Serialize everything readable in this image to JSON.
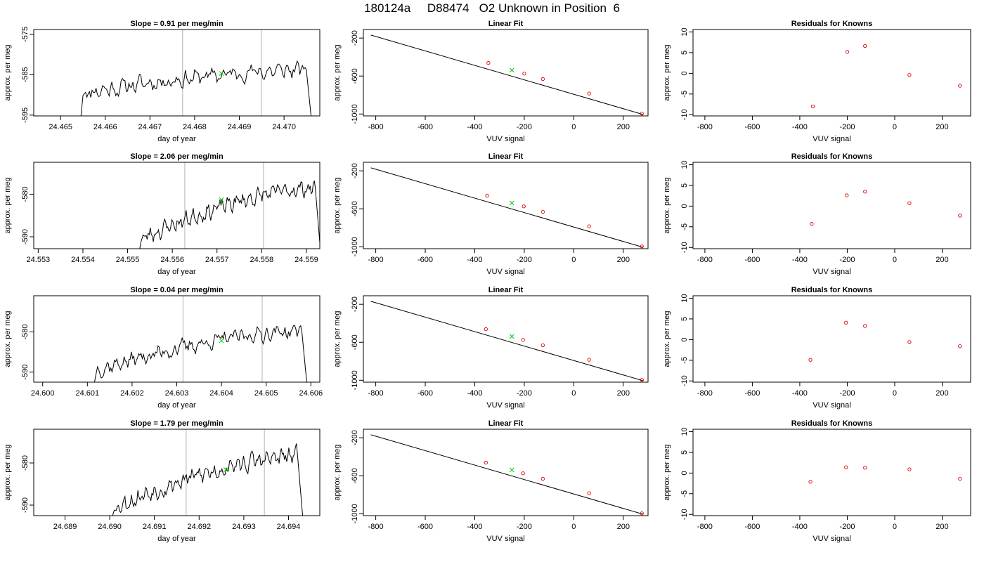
{
  "figure": {
    "title": "180124a     D88474   O2 Unknown in Position  6"
  },
  "chart_data": [
    {
      "type": "line",
      "title": "Slope =  0.91  per meg/min",
      "xlabel": "day of year",
      "ylabel": "approx. per meg",
      "xlim": [
        24.4644,
        24.4708
      ],
      "ylim": [
        -595.2,
        -573.8
      ],
      "xticks": [
        24.465,
        24.466,
        24.467,
        24.468,
        24.469,
        24.47
      ],
      "xtick_labels": [
        "24.465",
        "24.466",
        "24.467",
        "24.468",
        "24.469",
        "24.470"
      ],
      "yticks": [
        -575,
        -585,
        -595
      ],
      "ytick_labels": [
        "-575",
        "-585",
        "-595"
      ],
      "vlines": [
        24.46773,
        24.46949
      ],
      "marker": {
        "x": 24.4686,
        "y": -584.7,
        "color": "#00cc00"
      },
      "series": [
        {
          "x_start": 24.4655,
          "x_end": 24.4705,
          "level_start": -589.5,
          "level_end": -583.8,
          "noise": 2.6,
          "seed": 11,
          "drop_start": -596,
          "drop_end": -597,
          "line_color": "#000000"
        }
      ]
    },
    {
      "type": "line",
      "title": "Linear Fit",
      "xlabel": "VUV signal",
      "ylabel": "approx. per meg",
      "xlim": [
        -850,
        300
      ],
      "ylim": [
        -1020,
        -110
      ],
      "xticks": [
        -800,
        -600,
        -400,
        -200,
        0,
        200
      ],
      "xtick_labels": [
        "-800",
        "-600",
        "-400",
        "-200",
        "0",
        "200"
      ],
      "yticks": [
        -200,
        -600,
        -1000
      ],
      "ytick_labels": [
        "-200",
        "-600",
        "-1000"
      ],
      "fit_line": {
        "x": [
          -820,
          280
        ],
        "y": [
          -168,
          -1005
        ]
      },
      "knowns": {
        "x": [
          -345,
          -200,
          -125,
          62,
          275
        ],
        "y": [
          -462,
          -574,
          -632,
          -784,
          -996
        ]
      },
      "unknown": {
        "x": [
          -250
        ],
        "y": [
          -538
        ]
      }
    },
    {
      "type": "scatter",
      "title": "Residuals for Knowns",
      "xlabel": "VUV signal",
      "ylabel": "approx. per meg",
      "xlim": [
        -850,
        320
      ],
      "ylim": [
        -10.3,
        10.6
      ],
      "xticks": [
        -800,
        -600,
        -400,
        -200,
        0,
        200
      ],
      "xtick_labels": [
        "-800",
        "-600",
        "-400",
        "-200",
        "0",
        "200"
      ],
      "yticks": [
        10,
        5,
        0,
        -5,
        -10
      ],
      "ytick_labels": [
        "10",
        "5",
        "0",
        "-5",
        "-10"
      ],
      "x": [
        -345,
        -200,
        -125,
        62,
        275
      ],
      "y": [
        -8.0,
        5.2,
        6.6,
        -0.4,
        -3.0
      ]
    },
    {
      "type": "line",
      "title": "Slope =  2.06  per meg/min",
      "xlabel": "day of year",
      "ylabel": "approx. per meg",
      "xlim": [
        24.5529,
        24.5593
      ],
      "ylim": [
        -592.8,
        -572.5
      ],
      "xticks": [
        24.553,
        24.554,
        24.555,
        24.556,
        24.557,
        24.558,
        24.559
      ],
      "xtick_labels": [
        "24.553",
        "24.554",
        "24.555",
        "24.556",
        "24.557",
        "24.558",
        "24.559"
      ],
      "yticks": [
        -580,
        -590
      ],
      "ytick_labels": [
        "-580",
        "-590"
      ],
      "vlines": [
        24.55628,
        24.55804
      ],
      "marker": {
        "x": 24.5571,
        "y": -581.3,
        "color": "#00cc00"
      },
      "series": [
        {
          "x_start": 24.5553,
          "x_end": 24.5592,
          "level_start": -590.5,
          "level_end": -578.5,
          "noise": 2.4,
          "seed": 23,
          "drop_start": -594,
          "drop_end": -594,
          "line_color": "#000000"
        }
      ]
    },
    {
      "type": "line",
      "title": "Linear Fit",
      "xlabel": "VUV signal",
      "ylabel": "approx. per meg",
      "xlim": [
        -850,
        300
      ],
      "ylim": [
        -1020,
        -110
      ],
      "xticks": [
        -800,
        -600,
        -400,
        -200,
        0,
        200
      ],
      "xtick_labels": [
        "-800",
        "-600",
        "-400",
        "-200",
        "0",
        "200"
      ],
      "yticks": [
        -200,
        -600,
        -1000
      ],
      "ytick_labels": [
        "-200",
        "-600",
        "-1000"
      ],
      "fit_line": {
        "x": [
          -820,
          280
        ],
        "y": [
          -168,
          -1005
        ]
      },
      "knowns": {
        "x": [
          -350,
          -202,
          -125,
          62,
          275
        ],
        "y": [
          -462,
          -574,
          -632,
          -784,
          -996
        ]
      },
      "unknown": {
        "x": [
          -250
        ],
        "y": [
          -538
        ]
      }
    },
    {
      "type": "scatter",
      "title": "Residuals for Knowns",
      "xlabel": "VUV signal",
      "ylabel": "approx. per meg",
      "xlim": [
        -850,
        320
      ],
      "ylim": [
        -10.3,
        10.6
      ],
      "xticks": [
        -800,
        -600,
        -400,
        -200,
        0,
        200
      ],
      "xtick_labels": [
        "-800",
        "-600",
        "-400",
        "-200",
        "0",
        "200"
      ],
      "yticks": [
        10,
        5,
        0,
        -5,
        -10
      ],
      "ytick_labels": [
        "10",
        "5",
        "0",
        "-5",
        "-10"
      ],
      "x": [
        -350,
        -202,
        -125,
        62,
        275
      ],
      "y": [
        -4.3,
        2.6,
        3.5,
        0.7,
        -2.3
      ]
    },
    {
      "type": "line",
      "title": "Slope =  0.04  per meg/min",
      "xlabel": "day of year",
      "ylabel": "approx. per meg",
      "xlim": [
        24.5998,
        24.6062
      ],
      "ylim": [
        -592.5,
        -571.0
      ],
      "xticks": [
        24.6,
        24.601,
        24.602,
        24.603,
        24.604,
        24.605,
        24.606
      ],
      "xtick_labels": [
        "24.600",
        "24.601",
        "24.602",
        "24.603",
        "24.604",
        "24.605",
        "24.606"
      ],
      "yticks": [
        -580,
        -590
      ],
      "ytick_labels": [
        "-580",
        "-590"
      ],
      "vlines": [
        24.60314,
        24.60491
      ],
      "marker": {
        "x": 24.604,
        "y": -582.2,
        "color": "#00cc00"
      },
      "series": [
        {
          "x_start": 24.6012,
          "x_end": 24.6058,
          "level_start": -589.5,
          "level_end": -579.8,
          "noise": 2.4,
          "seed": 37,
          "drop_start": -593,
          "drop_end": -594,
          "line_color": "#000000"
        }
      ]
    },
    {
      "type": "line",
      "title": "Linear Fit",
      "xlabel": "VUV signal",
      "ylabel": "approx. per meg",
      "xlim": [
        -850,
        300
      ],
      "ylim": [
        -1020,
        -110
      ],
      "xticks": [
        -800,
        -600,
        -400,
        -200,
        0,
        200
      ],
      "xtick_labels": [
        "-800",
        "-600",
        "-400",
        "-200",
        "0",
        "200"
      ],
      "yticks": [
        -200,
        -600,
        -1000
      ],
      "ytick_labels": [
        "-200",
        "-600",
        "-1000"
      ],
      "fit_line": {
        "x": [
          -820,
          280
        ],
        "y": [
          -168,
          -1005
        ]
      },
      "knowns": {
        "x": [
          -355,
          -205,
          -125,
          62,
          275
        ],
        "y": [
          -462,
          -574,
          -632,
          -784,
          -996
        ]
      },
      "unknown": {
        "x": [
          -250
        ],
        "y": [
          -538
        ]
      }
    },
    {
      "type": "scatter",
      "title": "Residuals for Knowns",
      "xlabel": "VUV signal",
      "ylabel": "approx. per meg",
      "xlim": [
        -850,
        320
      ],
      "ylim": [
        -10.3,
        10.6
      ],
      "xticks": [
        -800,
        -600,
        -400,
        -200,
        0,
        200
      ],
      "xtick_labels": [
        "-800",
        "-600",
        "-400",
        "-200",
        "0",
        "200"
      ],
      "yticks": [
        10,
        5,
        0,
        -5,
        -10
      ],
      "ytick_labels": [
        "10",
        "5",
        "0",
        "-5",
        "-10"
      ],
      "x": [
        -355,
        -205,
        -125,
        62,
        275
      ],
      "y": [
        -4.9,
        4.1,
        3.3,
        -0.6,
        -1.6
      ]
    },
    {
      "type": "line",
      "title": "Slope =  1.79  per meg/min",
      "xlabel": "day of year",
      "ylabel": "approx. per meg",
      "xlim": [
        24.6883,
        24.6947
      ],
      "ylim": [
        -592.5,
        -572.0
      ],
      "xticks": [
        24.689,
        24.69,
        24.691,
        24.692,
        24.693,
        24.694
      ],
      "xtick_labels": [
        "24.689",
        "24.690",
        "24.691",
        "24.692",
        "24.693",
        "24.694"
      ],
      "yticks": [
        -580,
        -590
      ],
      "ytick_labels": [
        "-580",
        "-590"
      ],
      "vlines": [
        24.69171,
        24.69346
      ],
      "marker": {
        "x": 24.6926,
        "y": -581.6,
        "color": "#00cc00"
      },
      "series": [
        {
          "x_start": 24.6901,
          "x_end": 24.6942,
          "level_start": -590.5,
          "level_end": -578.5,
          "noise": 2.7,
          "seed": 53,
          "drop_start": -593,
          "drop_end": -593,
          "line_color": "#000000"
        }
      ]
    },
    {
      "type": "line",
      "title": "Linear Fit",
      "xlabel": "VUV signal",
      "ylabel": "approx. per meg",
      "xlim": [
        -850,
        300
      ],
      "ylim": [
        -1020,
        -110
      ],
      "xticks": [
        -800,
        -600,
        -400,
        -200,
        0,
        200
      ],
      "xtick_labels": [
        "-800",
        "-600",
        "-400",
        "-200",
        "0",
        "200"
      ],
      "yticks": [
        -200,
        -600,
        -1000
      ],
      "ytick_labels": [
        "-200",
        "-600",
        "-1000"
      ],
      "fit_line": {
        "x": [
          -820,
          280
        ],
        "y": [
          -168,
          -1005
        ]
      },
      "knowns": {
        "x": [
          -355,
          -205,
          -125,
          62,
          275
        ],
        "y": [
          -462,
          -574,
          -632,
          -784,
          -996
        ]
      },
      "unknown": {
        "x": [
          -250
        ],
        "y": [
          -538
        ]
      }
    },
    {
      "type": "scatter",
      "title": "Residuals for Knowns",
      "xlabel": "VUV signal",
      "ylabel": "approx. per meg",
      "xlim": [
        -850,
        320
      ],
      "ylim": [
        -10.3,
        10.6
      ],
      "xticks": [
        -800,
        -600,
        -400,
        -200,
        0,
        200
      ],
      "xtick_labels": [
        "-800",
        "-600",
        "-400",
        "-200",
        "0",
        "200"
      ],
      "yticks": [
        10,
        5,
        0,
        -5,
        -10
      ],
      "ytick_labels": [
        "10",
        "5",
        "0",
        "-5",
        "-10"
      ],
      "x": [
        -355,
        -205,
        -125,
        62,
        275
      ],
      "y": [
        -2.1,
        1.4,
        1.3,
        0.9,
        -1.4
      ]
    }
  ],
  "colors": {
    "axis": "#000000",
    "data_line": "#000000",
    "vline": "#bebebe",
    "known_points": "#dd0000",
    "unknown_point": "#00cc00"
  }
}
